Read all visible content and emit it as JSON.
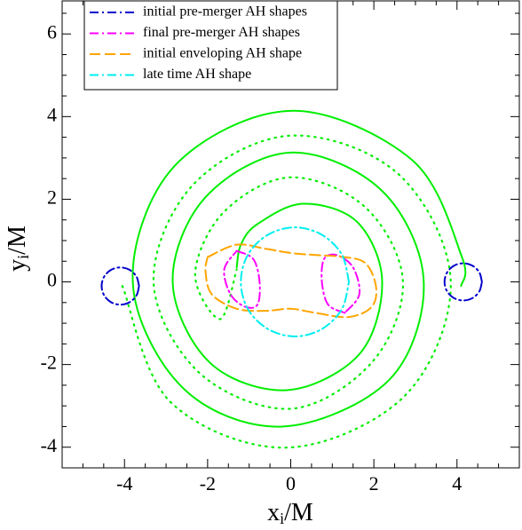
{
  "chart_data": {
    "type": "line",
    "xlabel": {
      "main": "x",
      "sub": "i",
      "rest": "/M"
    },
    "ylabel": {
      "main": "y",
      "sub": "i",
      "rest": "/M"
    },
    "xlim": [
      -5.5,
      5.5
    ],
    "ylim": [
      -4.5,
      6.8
    ],
    "xticks": [
      -4,
      -2,
      0,
      2,
      4
    ],
    "yticks": [
      -4,
      -2,
      0,
      2,
      4,
      6
    ],
    "legend": "upper left",
    "series": [
      {
        "color": "#00ee00",
        "dash": "solid",
        "x": [
          4.1,
          4.12,
          2.92,
          0,
          -2.8,
          -3.8,
          -2.58,
          -0.2,
          2.37,
          3.2,
          2.2,
          0,
          -2.05,
          -2.84,
          -1.95,
          -0.1,
          1.65,
          2.2,
          1.6,
          0.3,
          -0.8,
          -1.2,
          -1.3
        ],
        "y": [
          -0.1,
          0.6,
          2.95,
          4.14,
          2.8,
          0,
          -2.58,
          -3.5,
          -2.37,
          0,
          2.2,
          3.13,
          2.05,
          0,
          -1.95,
          -2.62,
          -1.75,
          0,
          1.45,
          1.89,
          1.4,
          0.9,
          0.35
        ]
      },
      {
        "color": "#00ee00",
        "dash": "dotted",
        "x": [
          -4.05,
          -2.9,
          -0.1,
          2.75,
          3.85,
          2.6,
          0,
          -2.35,
          -3.3,
          -2.2,
          0,
          1.95,
          2.7,
          1.8,
          0,
          -1.6,
          -2.3,
          -1.7,
          -1.3
        ],
        "y": [
          -0.1,
          -2.9,
          -4.01,
          -2.75,
          0,
          2.6,
          3.54,
          2.35,
          0,
          -2.2,
          -3.07,
          -1.95,
          0,
          1.8,
          2.53,
          1.7,
          0.2,
          -0.9,
          0.3
        ]
      },
      {
        "name": "initial pre-merger AH shapes",
        "color": "#0000cc",
        "dash": "dashdot",
        "x": [
          -3.65,
          -3.71,
          -3.875,
          -4.1,
          -4.325,
          -4.49,
          -4.55,
          -4.49,
          -4.325,
          -4.1,
          -3.875,
          -3.71,
          -3.65,
          null,
          4.6,
          4.54,
          4.375,
          4.15,
          3.925,
          3.76,
          3.7,
          3.76,
          3.925,
          4.15,
          4.375,
          4.54,
          4.6
        ],
        "y": [
          -0.1,
          0.125,
          0.29,
          0.35,
          0.29,
          0.125,
          -0.1,
          -0.325,
          -0.49,
          -0.55,
          -0.49,
          -0.325,
          -0.1,
          null,
          0,
          0.225,
          0.39,
          0.45,
          0.39,
          0.225,
          0,
          -0.225,
          -0.39,
          -0.45,
          -0.39,
          -0.225,
          0
        ]
      },
      {
        "name": "final pre-merger AH shapes",
        "color": "#ff00ff",
        "dash": "dashdot",
        "x": [
          -1.3,
          -0.9,
          -0.75,
          -0.8,
          -1.1,
          -1.45,
          -1.6,
          -1.3,
          null,
          1.3,
          0.9,
          0.75,
          0.8,
          1.1,
          1.5,
          1.65,
          1.3
        ],
        "y": [
          0.75,
          0.55,
          0.0,
          -0.55,
          -0.6,
          -0.3,
          0.3,
          0.75,
          null,
          -0.75,
          -0.55,
          0,
          0.55,
          0.65,
          0.35,
          -0.3,
          -0.75
        ]
      },
      {
        "name": "initial enveloping AH shape",
        "color": "#ffa500",
        "dash": "dashed",
        "x": [
          -2.0,
          -1.3,
          -0.6,
          0,
          0.6,
          1.3,
          1.8,
          2.05,
          1.95,
          1.4,
          0.6,
          0,
          -0.6,
          -1.3,
          -1.9,
          -2.05,
          -2.0
        ],
        "y": [
          0.6,
          0.9,
          0.8,
          0.7,
          0.65,
          0.6,
          0.45,
          -0.1,
          -0.6,
          -0.85,
          -0.75,
          -0.65,
          -0.7,
          -0.65,
          -0.3,
          0.25,
          0.6
        ]
      },
      {
        "name": "late time AH shape",
        "color": "#00eeee",
        "dash": "dashdot",
        "x": [
          1.4,
          1.23,
          0.75,
          0.1,
          -0.55,
          -1.03,
          -1.2,
          -1.03,
          -0.55,
          0.1,
          0.75,
          1.23,
          1.4
        ],
        "y": [
          0,
          0.66,
          1.14,
          1.32,
          1.14,
          0.66,
          0,
          -0.66,
          -1.14,
          -1.32,
          -1.14,
          -0.66,
          0
        ]
      }
    ]
  }
}
